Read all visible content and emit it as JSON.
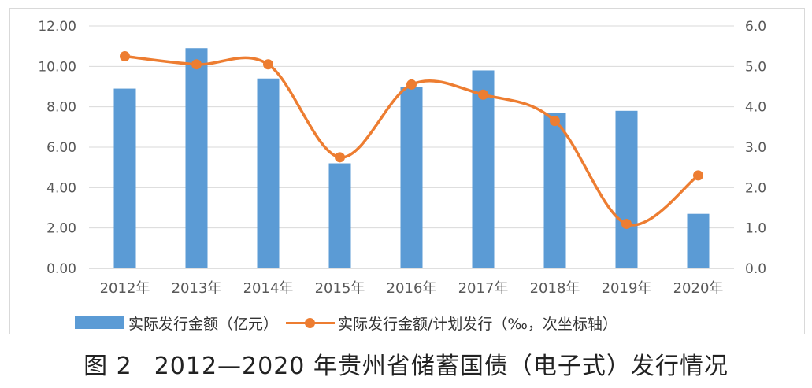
{
  "chart_data": {
    "type": "bar",
    "categories": [
      "2012年",
      "2013年",
      "2014年",
      "2015年",
      "2016年",
      "2017年",
      "2018年",
      "2019年",
      "2020年"
    ],
    "series": [
      {
        "name": "实际发行金额（亿元）",
        "type": "bar",
        "axis": "left",
        "color": "#5b9bd5",
        "values": [
          8.9,
          10.9,
          9.4,
          5.2,
          9.0,
          9.8,
          7.7,
          7.8,
          2.7
        ]
      },
      {
        "name": "实际发行金额/计划发行（‰，次坐标轴）",
        "type": "line",
        "smooth": true,
        "axis": "right",
        "color": "#ed7d31",
        "values": [
          5.25,
          5.05,
          5.05,
          2.75,
          4.55,
          4.3,
          3.65,
          1.1,
          2.3
        ]
      }
    ],
    "y_left": {
      "range": [
        0,
        12
      ],
      "ticks": [
        "0.00",
        "2.00",
        "4.00",
        "6.00",
        "8.00",
        "10.00",
        "12.00"
      ]
    },
    "y_right": {
      "range": [
        0,
        6
      ],
      "ticks": [
        "0.0",
        "1.0",
        "2.0",
        "3.0",
        "4.0",
        "5.0",
        "6.0"
      ]
    },
    "grid": true,
    "legend_position": "bottom"
  },
  "legend": {
    "bar_label": "实际发行金额（亿元）",
    "line_label": "实际发行金额/计划发行（‰，次坐标轴）"
  },
  "caption": {
    "figure_number": "图 2",
    "title": "2012—2020 年贵州省储蓄国债（电子式）发行情况"
  }
}
